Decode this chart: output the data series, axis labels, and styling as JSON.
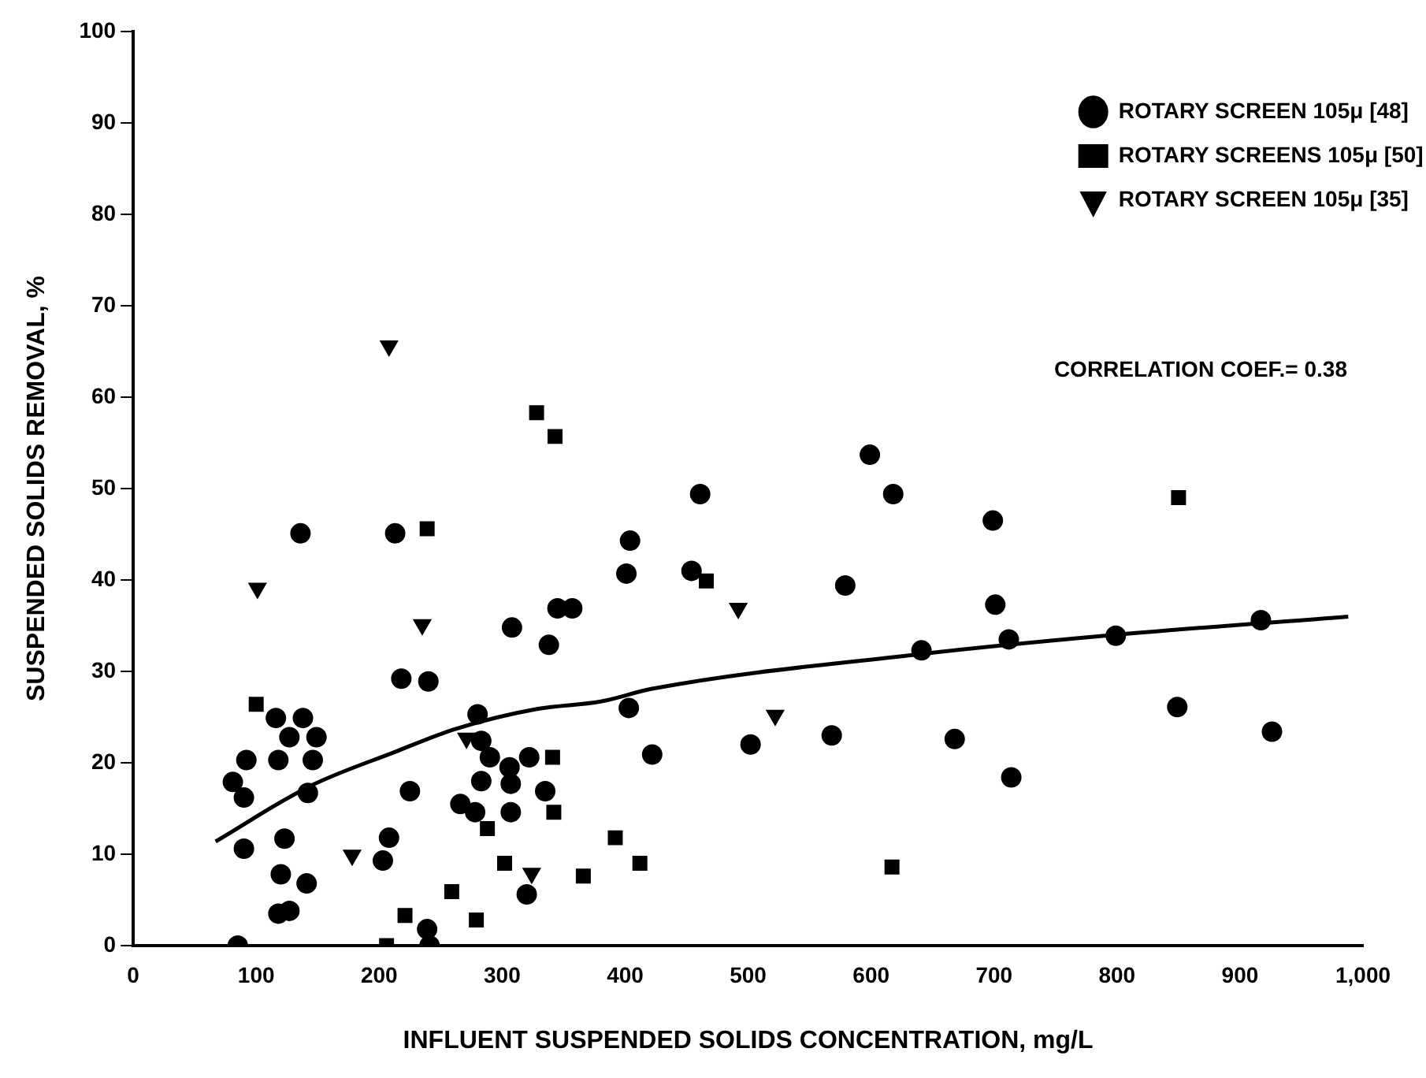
{
  "chart_data": {
    "type": "scatter",
    "xlabel": "INFLUENT SUSPENDED SOLIDS CONCENTRATION, mg/L",
    "ylabel": "SUSPENDED SOLIDS REMOVAL, %",
    "xlim": [
      0,
      1000
    ],
    "xticks": [
      0,
      100,
      200,
      300,
      400,
      500,
      600,
      700,
      800,
      900,
      {
        "value": 1000,
        "label": "1,000"
      }
    ],
    "ylim": [
      0,
      100
    ],
    "yticks": [
      0,
      10,
      20,
      30,
      40,
      50,
      60,
      70,
      80,
      90,
      100
    ],
    "grid": false,
    "legend": "top right",
    "annotations": [
      "CORRELATION COEF.= 0.38"
    ],
    "series": [
      {
        "name": "ROTARY SCREEN 105μ [48]",
        "type": "scatter",
        "marker": "circle",
        "color": "#000000",
        "x": [
          136,
          213,
          308,
          345,
          357,
          338,
          404,
          401,
          218,
          240,
          280,
          116,
          138,
          127,
          149,
          92,
          118,
          146,
          81,
          90,
          142,
          225,
          283,
          290,
          266,
          278,
          283,
          306,
          307,
          322,
          307,
          335,
          403,
          422,
          90,
          123,
          120,
          141,
          208,
          203,
          118,
          127,
          320,
          85,
          239,
          241,
          599,
          461,
          618,
          699,
          454,
          579,
          701,
          641,
          712,
          799,
          917,
          502,
          568,
          668,
          714,
          849,
          926
        ],
        "values": [
          45.1,
          45.1,
          34.8,
          36.9,
          36.9,
          32.9,
          44.3,
          40.7,
          29.2,
          28.9,
          25.3,
          24.9,
          24.9,
          22.8,
          22.8,
          20.3,
          20.3,
          20.3,
          17.9,
          16.2,
          16.7,
          16.9,
          22.4,
          20.6,
          15.5,
          14.6,
          18.0,
          19.5,
          17.7,
          20.6,
          14.6,
          16.9,
          26.0,
          20.9,
          10.6,
          11.7,
          7.8,
          6.8,
          11.8,
          9.3,
          3.5,
          3.8,
          5.6,
          0,
          1.8,
          0,
          53.7,
          49.4,
          49.4,
          46.5,
          41.0,
          39.4,
          37.3,
          32.3,
          33.5,
          33.9,
          35.6,
          22.0,
          23.0,
          22.6,
          18.4,
          26.1,
          23.4
        ]
      },
      {
        "name": "ROTARY SCREENS 105μ [50]",
        "type": "scatter",
        "marker": "square",
        "color": "#000000",
        "x": [
          328,
          343,
          239,
          100,
          341,
          342,
          288,
          392,
          412,
          302,
          366,
          259,
          279,
          221,
          206,
          466,
          850,
          617
        ],
        "values": [
          58.3,
          55.7,
          45.6,
          26.4,
          20.6,
          14.6,
          12.8,
          11.8,
          9.0,
          9.0,
          7.6,
          5.9,
          2.8,
          3.3,
          0,
          39.9,
          49.0,
          8.6
        ]
      },
      {
        "name": "ROTARY SCREEN 105μ [35]",
        "type": "scatter",
        "marker": "triangle",
        "color": "#000000",
        "x": [
          208,
          101,
          235,
          178,
          324,
          271,
          492,
          522
        ],
        "values": [
          65.6,
          39.1,
          35.1,
          9.9,
          7.9,
          22.7,
          36.9,
          25.2
        ]
      },
      {
        "type": "line",
        "marker": "none",
        "line_style": "solid",
        "color": "#000000",
        "x": [
          67,
          143,
          213,
          262,
          329,
          380,
          422,
          641,
          799,
          988
        ],
        "values": [
          11.4,
          17.4,
          21.2,
          23.7,
          25.9,
          26.7,
          28.1,
          31.9,
          34.0,
          36.0
        ]
      }
    ]
  }
}
